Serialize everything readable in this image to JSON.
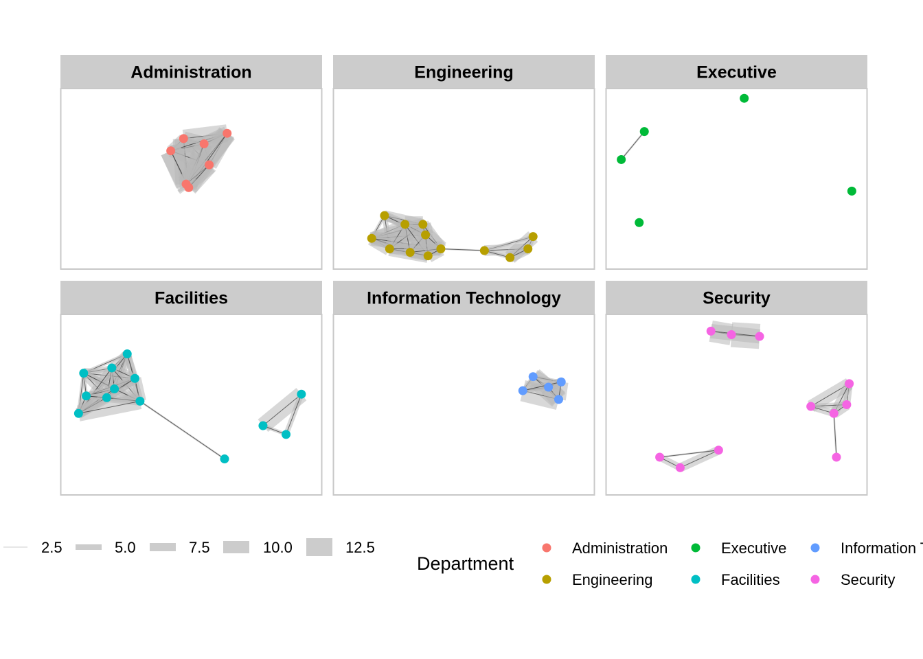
{
  "chart_data": {
    "type": "network",
    "facet_by": "Department",
    "panels": [
      {
        "title": "Administration",
        "color": "#F8766D",
        "nodes": [
          [
            0.47,
            0.27
          ],
          [
            0.42,
            0.34
          ],
          [
            0.55,
            0.3
          ],
          [
            0.64,
            0.24
          ],
          [
            0.57,
            0.42
          ],
          [
            0.48,
            0.53
          ],
          [
            0.49,
            0.55
          ]
        ],
        "edges": [
          [
            0,
            1,
            6
          ],
          [
            0,
            2,
            8
          ],
          [
            0,
            3,
            10
          ],
          [
            0,
            4,
            6
          ],
          [
            0,
            5,
            12
          ],
          [
            0,
            6,
            10
          ],
          [
            1,
            2,
            6
          ],
          [
            1,
            3,
            5
          ],
          [
            1,
            4,
            7
          ],
          [
            1,
            5,
            12
          ],
          [
            1,
            6,
            12
          ],
          [
            2,
            3,
            8
          ],
          [
            2,
            4,
            7
          ],
          [
            2,
            5,
            9
          ],
          [
            2,
            6,
            9
          ],
          [
            3,
            4,
            9
          ],
          [
            3,
            5,
            11
          ],
          [
            3,
            6,
            10
          ],
          [
            4,
            5,
            10
          ],
          [
            4,
            6,
            10
          ],
          [
            5,
            6,
            12
          ]
        ]
      },
      {
        "title": "Engineering",
        "color": "#B79F00",
        "nodes": [
          [
            0.19,
            0.71
          ],
          [
            0.14,
            0.84
          ],
          [
            0.21,
            0.9
          ],
          [
            0.27,
            0.76
          ],
          [
            0.34,
            0.76
          ],
          [
            0.35,
            0.82
          ],
          [
            0.29,
            0.92
          ],
          [
            0.36,
            0.94
          ],
          [
            0.41,
            0.9
          ],
          [
            0.58,
            0.91
          ],
          [
            0.77,
            0.83
          ],
          [
            0.75,
            0.9
          ],
          [
            0.68,
            0.95
          ]
        ],
        "edges": [
          [
            0,
            1,
            2
          ],
          [
            0,
            3,
            5
          ],
          [
            0,
            4,
            6
          ],
          [
            0,
            5,
            4
          ],
          [
            0,
            2,
            3
          ],
          [
            1,
            2,
            8
          ],
          [
            1,
            3,
            6
          ],
          [
            1,
            4,
            7
          ],
          [
            1,
            5,
            6
          ],
          [
            1,
            6,
            5
          ],
          [
            1,
            7,
            6
          ],
          [
            1,
            8,
            8
          ],
          [
            2,
            3,
            7
          ],
          [
            2,
            4,
            6
          ],
          [
            2,
            6,
            5
          ],
          [
            2,
            7,
            8
          ],
          [
            2,
            8,
            6
          ],
          [
            3,
            4,
            9
          ],
          [
            3,
            5,
            7
          ],
          [
            3,
            6,
            6
          ],
          [
            3,
            7,
            7
          ],
          [
            4,
            5,
            9
          ],
          [
            4,
            7,
            6
          ],
          [
            4,
            8,
            7
          ],
          [
            5,
            6,
            6
          ],
          [
            5,
            7,
            8
          ],
          [
            5,
            8,
            9
          ],
          [
            6,
            7,
            6
          ],
          [
            6,
            8,
            7
          ],
          [
            7,
            8,
            8
          ],
          [
            8,
            9,
            1
          ],
          [
            9,
            10,
            2
          ],
          [
            9,
            11,
            6
          ],
          [
            9,
            12,
            2
          ],
          [
            10,
            11,
            3
          ],
          [
            10,
            12,
            8
          ],
          [
            11,
            12,
            6
          ]
        ]
      },
      {
        "title": "Executive",
        "color": "#00BA38",
        "nodes": [
          [
            0.53,
            0.04
          ],
          [
            0.14,
            0.23
          ],
          [
            0.05,
            0.39
          ],
          [
            0.95,
            0.57
          ],
          [
            0.12,
            0.75
          ]
        ],
        "edges": [
          [
            1,
            2,
            1
          ]
        ]
      },
      {
        "title": "Facilities",
        "color": "#00BFC4",
        "nodes": [
          [
            0.25,
            0.21
          ],
          [
            0.08,
            0.32
          ],
          [
            0.19,
            0.29
          ],
          [
            0.28,
            0.35
          ],
          [
            0.2,
            0.41
          ],
          [
            0.09,
            0.45
          ],
          [
            0.17,
            0.46
          ],
          [
            0.3,
            0.48
          ],
          [
            0.06,
            0.55
          ],
          [
            0.63,
            0.81
          ],
          [
            0.93,
            0.44
          ],
          [
            0.78,
            0.62
          ],
          [
            0.87,
            0.67
          ]
        ],
        "edges": [
          [
            0,
            1,
            2
          ],
          [
            0,
            2,
            5
          ],
          [
            0,
            3,
            4
          ],
          [
            0,
            4,
            6
          ],
          [
            0,
            6,
            5
          ],
          [
            0,
            7,
            4
          ],
          [
            0,
            8,
            3
          ],
          [
            1,
            2,
            3
          ],
          [
            1,
            3,
            6
          ],
          [
            1,
            4,
            4
          ],
          [
            1,
            5,
            2
          ],
          [
            1,
            6,
            5
          ],
          [
            1,
            7,
            3
          ],
          [
            1,
            8,
            2
          ],
          [
            2,
            3,
            5
          ],
          [
            2,
            4,
            5
          ],
          [
            2,
            6,
            4
          ],
          [
            2,
            7,
            3
          ],
          [
            2,
            8,
            5
          ],
          [
            3,
            4,
            4
          ],
          [
            3,
            5,
            3
          ],
          [
            3,
            6,
            5
          ],
          [
            3,
            7,
            7
          ],
          [
            3,
            8,
            6
          ],
          [
            4,
            5,
            4
          ],
          [
            4,
            6,
            4
          ],
          [
            4,
            7,
            5
          ],
          [
            4,
            8,
            5
          ],
          [
            5,
            6,
            3
          ],
          [
            5,
            7,
            3
          ],
          [
            5,
            8,
            4
          ],
          [
            6,
            7,
            5
          ],
          [
            6,
            8,
            6
          ],
          [
            7,
            8,
            9
          ],
          [
            7,
            9,
            1
          ],
          [
            10,
            11,
            9
          ],
          [
            10,
            12,
            3
          ],
          [
            11,
            12,
            2
          ]
        ]
      },
      {
        "title": "Information Technology",
        "color": "#619CFF",
        "nodes": [
          [
            0.77,
            0.34
          ],
          [
            0.73,
            0.42
          ],
          [
            0.83,
            0.4
          ],
          [
            0.88,
            0.37
          ],
          [
            0.87,
            0.47
          ]
        ],
        "edges": [
          [
            0,
            1,
            2
          ],
          [
            0,
            2,
            9
          ],
          [
            0,
            3,
            2
          ],
          [
            0,
            4,
            11
          ],
          [
            1,
            2,
            2
          ],
          [
            1,
            4,
            12
          ],
          [
            2,
            3,
            5
          ],
          [
            2,
            4,
            10
          ],
          [
            3,
            4,
            8
          ],
          [
            1,
            3,
            4
          ]
        ]
      },
      {
        "title": "Security",
        "color": "#F564E3",
        "nodes": [
          [
            0.4,
            0.08
          ],
          [
            0.48,
            0.1
          ],
          [
            0.59,
            0.11
          ],
          [
            0.94,
            0.38
          ],
          [
            0.79,
            0.51
          ],
          [
            0.93,
            0.5
          ],
          [
            0.88,
            0.55
          ],
          [
            0.89,
            0.8
          ],
          [
            0.2,
            0.8
          ],
          [
            0.28,
            0.86
          ],
          [
            0.43,
            0.76
          ]
        ],
        "edges": [
          [
            0,
            1,
            12
          ],
          [
            1,
            2,
            14
          ],
          [
            0,
            2,
            8
          ],
          [
            3,
            4,
            7
          ],
          [
            3,
            5,
            4
          ],
          [
            3,
            6,
            5
          ],
          [
            4,
            5,
            3
          ],
          [
            4,
            6,
            4
          ],
          [
            5,
            6,
            6
          ],
          [
            6,
            7,
            1
          ],
          [
            8,
            9,
            4
          ],
          [
            9,
            10,
            5
          ],
          [
            8,
            10,
            1
          ]
        ]
      }
    ],
    "legend_edge_width": {
      "title": "",
      "values": [
        "2.5",
        "5.0",
        "7.5",
        "10.0",
        "12.5"
      ]
    },
    "legend_color": {
      "title": "Department",
      "entries": [
        {
          "label": "Administration",
          "color": "#F8766D"
        },
        {
          "label": "Engineering",
          "color": "#B79F00"
        },
        {
          "label": "Executive",
          "color": "#00BA38"
        },
        {
          "label": "Facilities",
          "color": "#00BFC4"
        },
        {
          "label": "Information T",
          "color": "#619CFF"
        },
        {
          "label": "Security",
          "color": "#F564E3"
        }
      ],
      "placement": "bottom"
    },
    "grid": false
  }
}
